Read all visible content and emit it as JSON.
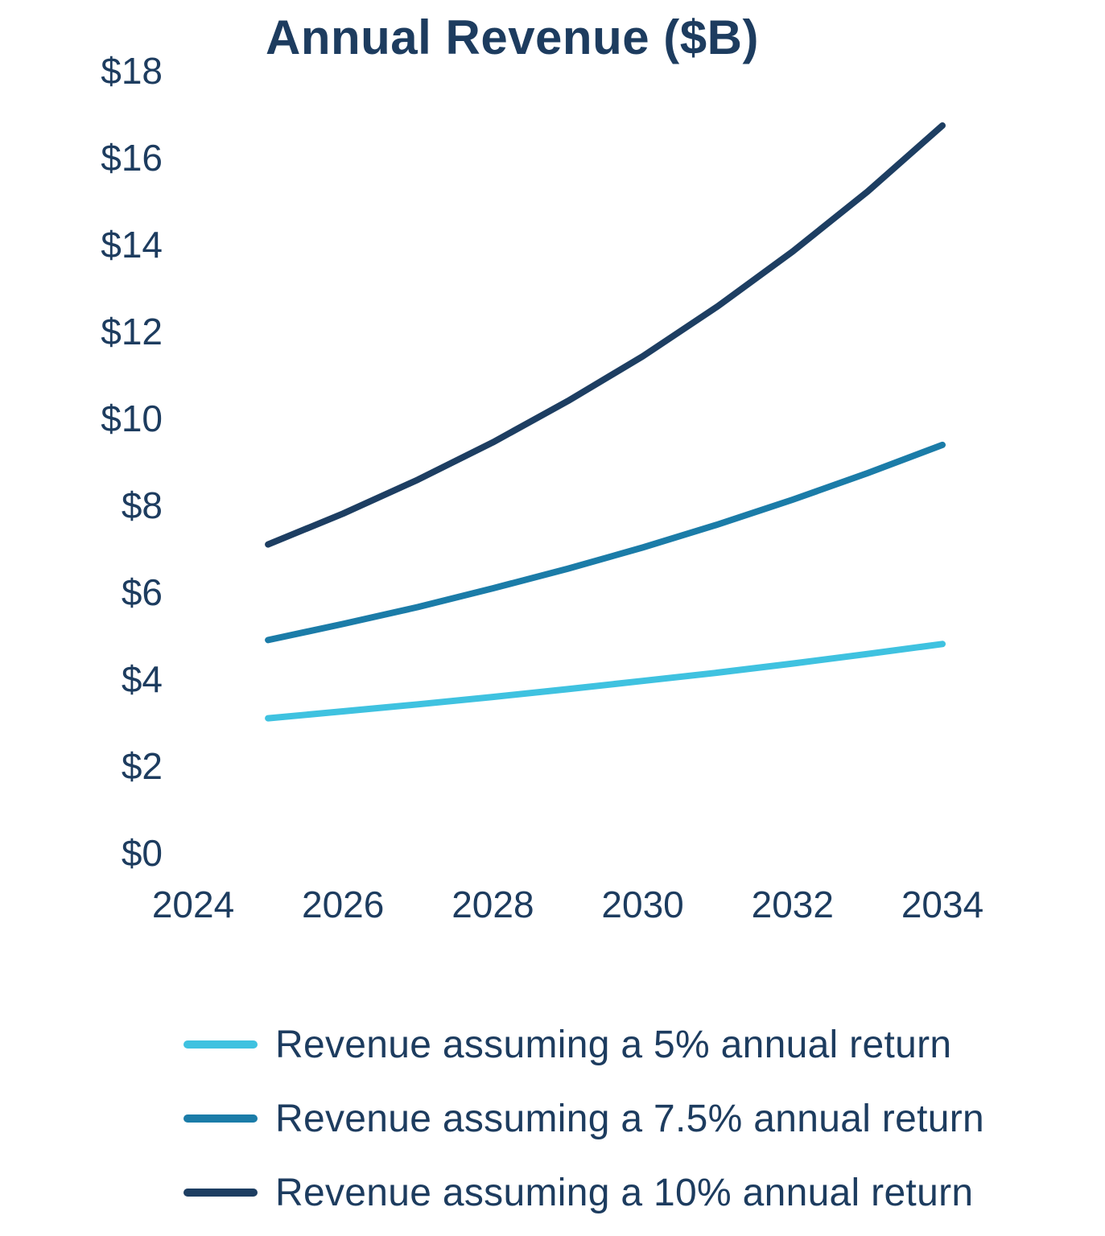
{
  "title": "Annual Revenue ($B)",
  "colors": {
    "text": "#1D3C5F",
    "background": "#FFFFFF",
    "series_5pct": "#3FC2E0",
    "series_7_5pct": "#1B7CA8",
    "series_10pct": "#1D3E62"
  },
  "chart_data": {
    "type": "line",
    "title": "Annual Revenue ($B)",
    "xlabel": "",
    "ylabel": "",
    "xlim": [
      2024,
      2034
    ],
    "ylim": [
      0,
      18
    ],
    "grid": false,
    "legend_position": "bottom",
    "x": [
      2025,
      2026,
      2027,
      2028,
      2029,
      2030,
      2031,
      2032,
      2033,
      2034
    ],
    "series": [
      {
        "name": "Revenue assuming a 5% annual return",
        "color": "#3FC2E0",
        "values": [
          3.1,
          3.26,
          3.42,
          3.59,
          3.77,
          3.96,
          4.15,
          4.36,
          4.58,
          4.81
        ]
      },
      {
        "name": "Revenue assuming a 7.5% annual return",
        "color": "#1B7CA8",
        "values": [
          4.9,
          5.27,
          5.66,
          6.09,
          6.54,
          7.03,
          7.56,
          8.13,
          8.74,
          9.39
        ]
      },
      {
        "name": "Revenue assuming a 10% annual return",
        "color": "#1D3E62",
        "values": [
          7.1,
          7.81,
          8.59,
          9.45,
          10.4,
          11.43,
          12.58,
          13.84,
          15.22,
          16.74
        ]
      }
    ],
    "x_ticks": [
      {
        "value": 2024,
        "label": "2024"
      },
      {
        "value": 2026,
        "label": "2026"
      },
      {
        "value": 2028,
        "label": "2028"
      },
      {
        "value": 2030,
        "label": "2030"
      },
      {
        "value": 2032,
        "label": "2032"
      },
      {
        "value": 2034,
        "label": "2034"
      }
    ],
    "y_ticks": [
      {
        "value": 0,
        "label": "$0"
      },
      {
        "value": 2,
        "label": "$2"
      },
      {
        "value": 4,
        "label": "$4"
      },
      {
        "value": 6,
        "label": "$6"
      },
      {
        "value": 8,
        "label": "$8"
      },
      {
        "value": 10,
        "label": "$10"
      },
      {
        "value": 12,
        "label": "$12"
      },
      {
        "value": 14,
        "label": "$14"
      },
      {
        "value": 16,
        "label": "$16"
      },
      {
        "value": 18,
        "label": "$18"
      }
    ]
  }
}
